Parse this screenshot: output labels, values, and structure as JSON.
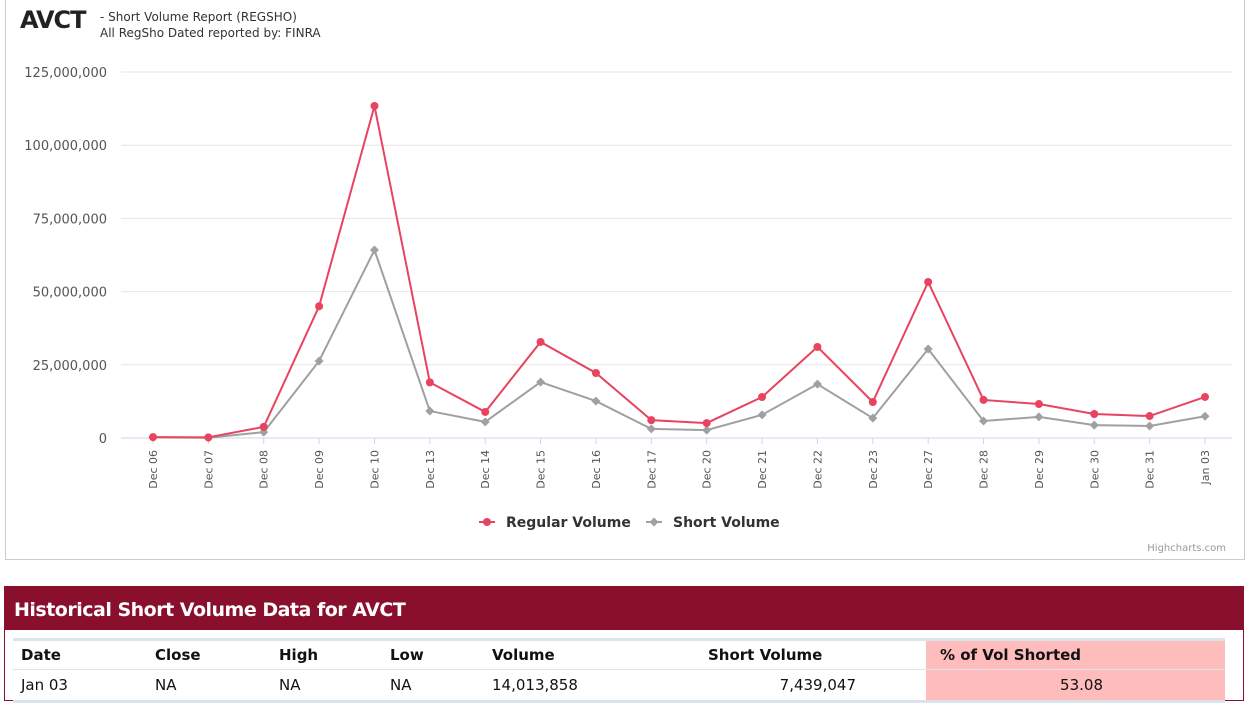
{
  "header": {
    "ticker": "AVCT",
    "subtitle": "- Short Volume Report  (REGSHO)",
    "source": "All RegSho Dated reported by: FINRA"
  },
  "credits": "Highcharts.com",
  "colors": {
    "regular": "#e8435f",
    "short": "#a0a0a0",
    "table_header": "#8a0f2c",
    "pct_bg": "#ffbcbc"
  },
  "chart_data": {
    "type": "line",
    "title": "AVCT",
    "categories": [
      "Dec 06",
      "Dec 07",
      "Dec 08",
      "Dec 09",
      "Dec 10",
      "Dec 13",
      "Dec 14",
      "Dec 15",
      "Dec 16",
      "Dec 17",
      "Dec 20",
      "Dec 21",
      "Dec 22",
      "Dec 23",
      "Dec 27",
      "Dec 28",
      "Dec 29",
      "Dec 30",
      "Dec 31",
      "Jan 03"
    ],
    "ylim": [
      0,
      125000000
    ],
    "yticks": [
      0,
      25000000,
      50000000,
      75000000,
      100000000,
      125000000
    ],
    "ytick_labels": [
      "0",
      "25,000,000",
      "50,000,000",
      "75,000,000",
      "100,000,000",
      "125,000,000"
    ],
    "grid": true,
    "legend_position": "bottom-center",
    "series": [
      {
        "name": "Regular Volume",
        "marker": "circle",
        "values": [
          300000,
          200000,
          3800000,
          45000000,
          113400000,
          19000000,
          8900000,
          32800000,
          22200000,
          6100000,
          5100000,
          14000000,
          31100000,
          12300000,
          53300000,
          13000000,
          11600000,
          8200000,
          7500000,
          14013858
        ]
      },
      {
        "name": "Short Volume",
        "marker": "diamond",
        "values": [
          200000,
          100000,
          2000000,
          26300000,
          64200000,
          9200000,
          5500000,
          19100000,
          12600000,
          3100000,
          2700000,
          7900000,
          18400000,
          6800000,
          30400000,
          5800000,
          7200000,
          4400000,
          4100000,
          7439047
        ]
      }
    ]
  },
  "table": {
    "title": "Historical Short Volume Data for AVCT",
    "headers": [
      "Date",
      "Close",
      "High",
      "Low",
      "Volume",
      "Short Volume",
      "% of Vol Shorted"
    ],
    "rows": [
      [
        "Jan 03",
        "NA",
        "NA",
        "NA",
        "14,013,858",
        "7,439,047",
        "53.08"
      ]
    ]
  }
}
